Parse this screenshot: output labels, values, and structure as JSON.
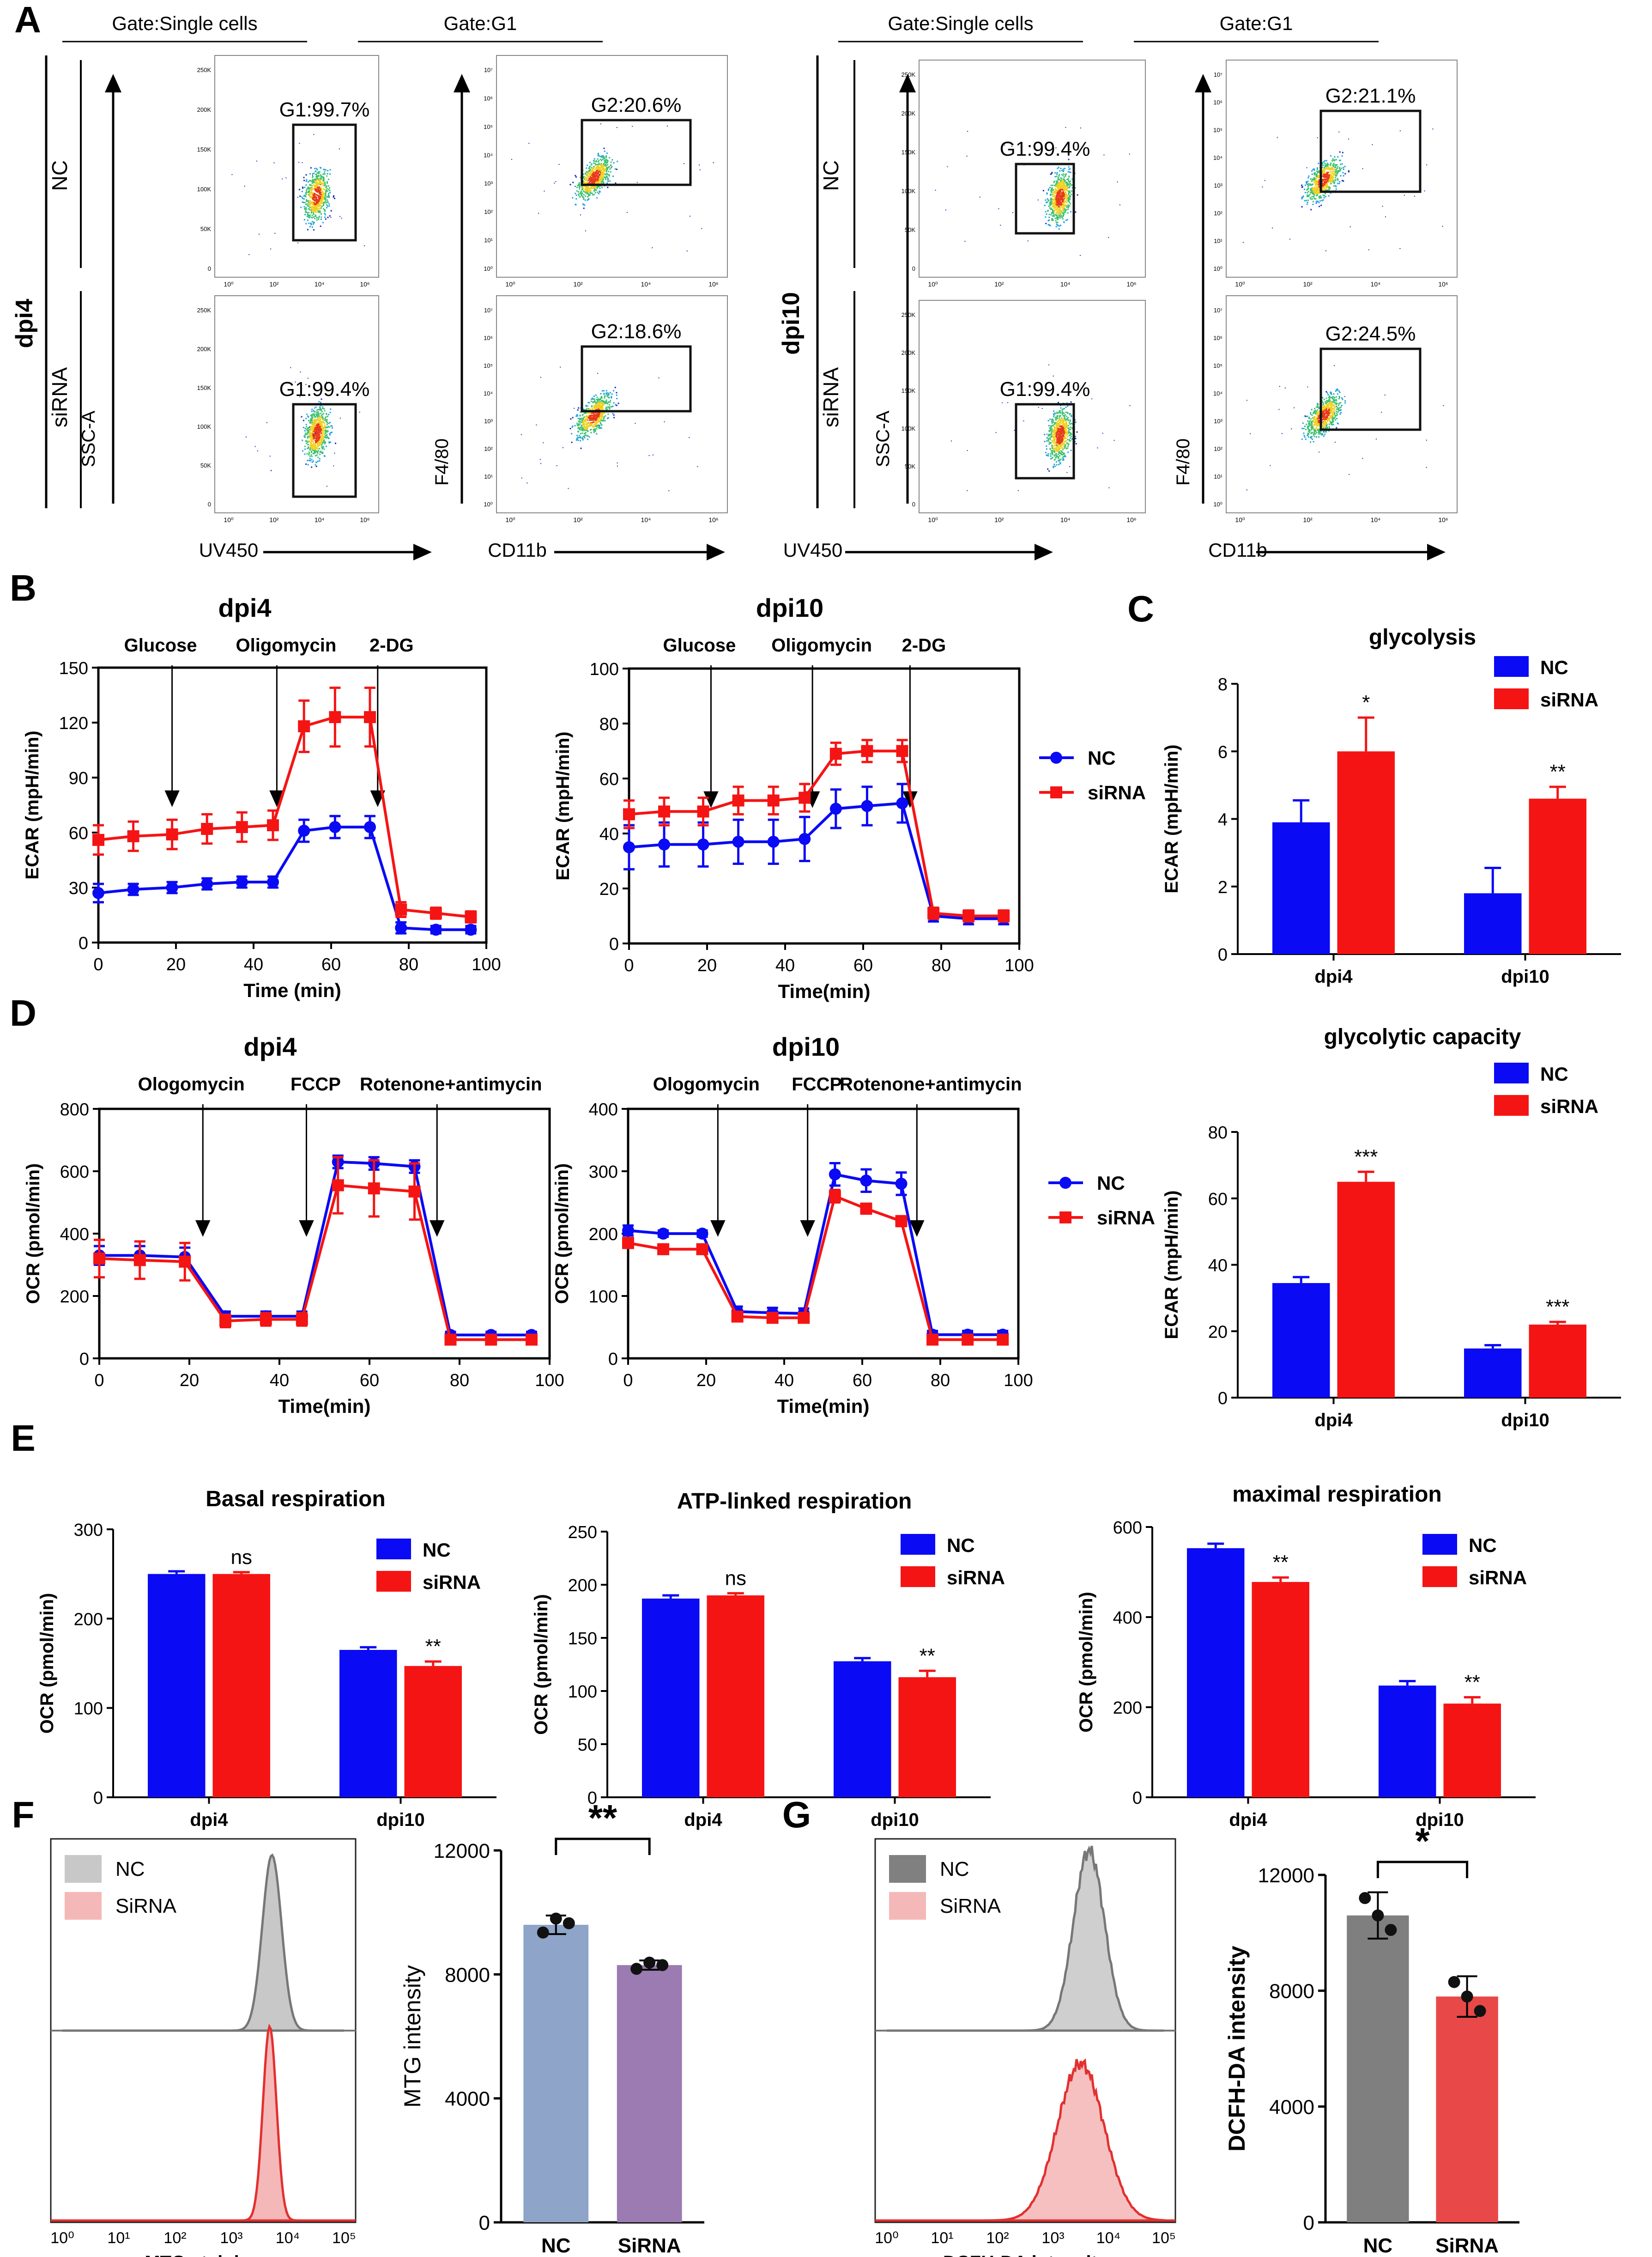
{
  "colors": {
    "nc": "#0a0af5",
    "sirna": "#f51414",
    "gray": "#808080",
    "pink": "#f4a6a6",
    "blueGray": "#8ea4c8",
    "purple": "#9b7bb2",
    "dkgray": "#7f7f7f",
    "salmon": "#e84848"
  },
  "panels": {
    "A": "A",
    "B": "B",
    "C": "C",
    "D": "D",
    "E": "E",
    "F": "F",
    "G": "G"
  },
  "panelA": {
    "gate_single": "Gate:Single cells",
    "gate_g1": "Gate:G1",
    "groups": [
      "dpi4",
      "dpi10"
    ],
    "rows": [
      "NC",
      "siRNA"
    ],
    "ssc_axis": "SSC-A",
    "uv_axis": "UV450",
    "f480_axis": "F4/80",
    "cd11b_axis": "CD11b",
    "gates": [
      "G1:99.7%",
      "G1:99.4%",
      "G2:20.6%",
      "G2:18.6%",
      "G1:99.4%",
      "G1:99.4%",
      "G2:21.1%",
      "G2:24.5%"
    ]
  },
  "legend": {
    "nc": "NC",
    "sirna": "siRNA"
  },
  "chart_data": [
    {
      "id": "B-dpi4",
      "type": "line",
      "title": "dpi4",
      "xlabel": "Time (min)",
      "ylabel": "ECAR (mpH/min)",
      "xlim": [
        0,
        100
      ],
      "ylim": [
        0,
        150
      ],
      "yticks": [
        "0",
        "30",
        "60",
        "90",
        "120",
        "150"
      ],
      "xticks": [
        "0",
        "20",
        "40",
        "60",
        "80",
        "100"
      ],
      "annotations": [
        {
          "label": "Glucose",
          "x": 19
        },
        {
          "label": "Oligomycin",
          "x": 46
        },
        {
          "label": "2-DG",
          "x": 72
        }
      ],
      "x": [
        0,
        9,
        19,
        28,
        37,
        45,
        53,
        61,
        70,
        78,
        87,
        96
      ],
      "series": [
        {
          "name": "NC",
          "values": [
            27,
            29,
            30,
            32,
            33,
            33,
            61,
            63,
            63,
            8,
            7,
            7
          ],
          "err": [
            5,
            3,
            3,
            3,
            3,
            3,
            6,
            6,
            6,
            3,
            2,
            2
          ]
        },
        {
          "name": "siRNA",
          "values": [
            56,
            58,
            59,
            62,
            63,
            64,
            118,
            123,
            123,
            18,
            16,
            14
          ],
          "err": [
            8,
            8,
            8,
            8,
            8,
            8,
            14,
            16,
            16,
            4,
            3,
            3
          ]
        }
      ]
    },
    {
      "id": "B-dpi10",
      "type": "line",
      "title": "dpi10",
      "xlabel": "Time(min)",
      "ylabel": "ECAR (mpH/min)",
      "xlim": [
        0,
        100
      ],
      "ylim": [
        0,
        100
      ],
      "yticks": [
        "0",
        "20",
        "40",
        "60",
        "80",
        "100"
      ],
      "xticks": [
        "0",
        "20",
        "40",
        "60",
        "80",
        "100"
      ],
      "annotations": [
        {
          "label": "Glucose",
          "x": 21
        },
        {
          "label": "Oligomycin",
          "x": 47
        },
        {
          "label": "2-DG",
          "x": 72
        }
      ],
      "x": [
        0,
        9,
        19,
        28,
        37,
        45,
        53,
        61,
        70,
        78,
        87,
        96
      ],
      "series": [
        {
          "name": "NC",
          "values": [
            35,
            36,
            36,
            37,
            37,
            38,
            49,
            50,
            51,
            10,
            9,
            9
          ],
          "err": [
            8,
            8,
            8,
            8,
            8,
            8,
            7,
            7,
            7,
            2,
            2,
            2
          ]
        },
        {
          "name": "siRNA",
          "values": [
            47,
            48,
            48,
            52,
            52,
            53,
            69,
            70,
            70,
            11,
            10,
            10
          ],
          "err": [
            5,
            5,
            5,
            5,
            5,
            5,
            4,
            4,
            4,
            2,
            2,
            2
          ]
        }
      ]
    },
    {
      "id": "D-dpi4",
      "type": "line",
      "title": "dpi4",
      "xlabel": "Time(min)",
      "ylabel": "OCR (pmol/min)",
      "xlim": [
        0,
        100
      ],
      "ylim": [
        0,
        800
      ],
      "yticks": [
        "0",
        "200",
        "400",
        "600",
        "800"
      ],
      "xticks": [
        "0",
        "20",
        "40",
        "60",
        "80",
        "100"
      ],
      "annotations": [
        {
          "label": "Ologomycin",
          "x": 23
        },
        {
          "label": "FCCP",
          "x": 46
        },
        {
          "label": "Rotenone+antimycin",
          "x": 75
        }
      ],
      "x": [
        0,
        9,
        19,
        28,
        37,
        45,
        53,
        61,
        70,
        78,
        87,
        96
      ],
      "series": [
        {
          "name": "NC",
          "values": [
            330,
            330,
            325,
            135,
            135,
            135,
            630,
            625,
            615,
            75,
            75,
            75
          ],
          "err": [
            30,
            30,
            30,
            15,
            15,
            15,
            20,
            20,
            20,
            10,
            10,
            10
          ]
        },
        {
          "name": "siRNA",
          "values": [
            320,
            315,
            310,
            120,
            125,
            125,
            555,
            545,
            535,
            60,
            60,
            60
          ],
          "err": [
            60,
            60,
            60,
            20,
            20,
            20,
            90,
            90,
            90,
            12,
            12,
            12
          ]
        }
      ]
    },
    {
      "id": "D-dpi10",
      "type": "line",
      "title": "dpi10",
      "xlabel": "Time(min)",
      "ylabel": "OCR (pmol/min)",
      "xlim": [
        0,
        100
      ],
      "ylim": [
        0,
        400
      ],
      "yticks": [
        "0",
        "100",
        "200",
        "300",
        "400"
      ],
      "xticks": [
        "0",
        "20",
        "40",
        "60",
        "80",
        "100"
      ],
      "annotations": [
        {
          "label": "Ologomycin",
          "x": 23
        },
        {
          "label": "FCCP",
          "x": 46
        },
        {
          "label": "Rotenone+antimycin",
          "x": 74
        }
      ],
      "x": [
        0,
        9,
        19,
        28,
        37,
        45,
        53,
        61,
        70,
        78,
        87,
        96
      ],
      "series": [
        {
          "name": "NC",
          "values": [
            205,
            200,
            200,
            75,
            73,
            72,
            295,
            285,
            280,
            38,
            38,
            38
          ],
          "err": [
            8,
            5,
            5,
            8,
            8,
            8,
            18,
            18,
            18,
            6,
            6,
            6
          ]
        },
        {
          "name": "siRNA",
          "values": [
            185,
            175,
            175,
            67,
            65,
            65,
            260,
            240,
            220,
            30,
            30,
            30
          ],
          "err": [
            8,
            5,
            5,
            5,
            5,
            5,
            10,
            8,
            8,
            4,
            4,
            4
          ]
        }
      ]
    },
    {
      "id": "C-glycolysis",
      "type": "bar",
      "title": "glycolysis",
      "ylabel": "ECAR (mpH/min)",
      "ylim": [
        0,
        8
      ],
      "yticks": [
        "0",
        "2",
        "4",
        "6",
        "8"
      ],
      "categories": [
        "dpi4",
        "dpi10"
      ],
      "series": [
        {
          "name": "NC",
          "values": [
            3.9,
            1.8
          ],
          "err": [
            0.65,
            0.75
          ]
        },
        {
          "name": "siRNA",
          "values": [
            6.0,
            4.6
          ],
          "err": [
            1.0,
            0.35
          ]
        }
      ],
      "sig": [
        "*",
        "**"
      ]
    },
    {
      "id": "C-glycolytic-capacity",
      "type": "bar",
      "title": "glycolytic capacity",
      "ylabel": "ECAR (mpH/min)",
      "ylim": [
        0,
        80
      ],
      "yticks": [
        "0",
        "20",
        "40",
        "60",
        "80"
      ],
      "categories": [
        "dpi4",
        "dpi10"
      ],
      "series": [
        {
          "name": "NC",
          "values": [
            34.5,
            14.8
          ],
          "err": [
            1.8,
            1.0
          ]
        },
        {
          "name": "siRNA",
          "values": [
            65,
            22
          ],
          "err": [
            3.0,
            0.8
          ]
        }
      ],
      "sig": [
        "***",
        "***"
      ]
    },
    {
      "id": "E-basal",
      "type": "bar",
      "title": "Basal respiration",
      "ylabel": "OCR (pmol/min)",
      "ylim": [
        0,
        300
      ],
      "yticks": [
        "0",
        "100",
        "200",
        "300"
      ],
      "categories": [
        "dpi4",
        "dpi10"
      ],
      "series": [
        {
          "name": "NC",
          "values": [
            250,
            165
          ],
          "err": [
            3,
            3
          ]
        },
        {
          "name": "siRNA",
          "values": [
            250,
            147
          ],
          "err": [
            2,
            5
          ]
        }
      ],
      "sig": [
        "ns",
        "**"
      ]
    },
    {
      "id": "E-atp",
      "type": "bar",
      "title": "ATP-linked respiration",
      "ylabel": "OCR (pmol/min)",
      "ylim": [
        0,
        250
      ],
      "yticks": [
        "0",
        "50",
        "100",
        "150",
        "200",
        "250"
      ],
      "categories": [
        "dpi4",
        "dpi10"
      ],
      "series": [
        {
          "name": "NC",
          "values": [
            187,
            128
          ],
          "err": [
            3,
            3
          ]
        },
        {
          "name": "siRNA",
          "values": [
            190,
            113
          ],
          "err": [
            2,
            6
          ]
        }
      ],
      "sig": [
        "ns",
        "**"
      ]
    },
    {
      "id": "E-maximal",
      "type": "bar",
      "title": "maximal respiration",
      "ylabel": "OCR (pmol/min)",
      "ylim": [
        0,
        600
      ],
      "yticks": [
        "0",
        "200",
        "400",
        "600"
      ],
      "categories": [
        "dpi4",
        "dpi10"
      ],
      "series": [
        {
          "name": "NC",
          "values": [
            553,
            248
          ],
          "err": [
            10,
            10
          ]
        },
        {
          "name": "siRNA",
          "values": [
            478,
            208
          ],
          "err": [
            10,
            14
          ]
        }
      ],
      "sig": [
        "**",
        "**"
      ]
    },
    {
      "id": "F-bar",
      "type": "bar",
      "ylabel": "MTG intensity",
      "ylim": [
        0,
        12000
      ],
      "yticks": [
        "0",
        "4000",
        "8000",
        "12000"
      ],
      "categories": [
        "NC",
        "SiRNA"
      ],
      "values": [
        9600,
        8300
      ],
      "err": [
        300,
        150
      ],
      "points": [
        [
          9350,
          9800,
          9650
        ],
        [
          8180,
          8380,
          8300
        ]
      ],
      "sig": "**"
    },
    {
      "id": "G-bar",
      "type": "bar",
      "ylabel": "DCFH-DA intensity",
      "ylim": [
        0,
        12000
      ],
      "yticks": [
        "0",
        "4000",
        "8000",
        "12000"
      ],
      "categories": [
        "NC",
        "SiRNA"
      ],
      "values": [
        10600,
        7800
      ],
      "err": [
        800,
        700
      ],
      "points": [
        [
          11200,
          10600,
          10100
        ],
        [
          8300,
          7800,
          7300
        ]
      ],
      "sig": "*"
    },
    {
      "id": "F-hist",
      "type": "area",
      "xlabel": "MTG staining",
      "xticks": [
        "10⁰",
        "10¹",
        "10²",
        "10³",
        "10⁴",
        "10⁵"
      ],
      "legend": [
        "NC",
        "SiRNA"
      ],
      "peak_log10": [
        3.72,
        3.68
      ]
    },
    {
      "id": "G-hist",
      "type": "area",
      "xlabel": "DCFH-DA intensity",
      "xticks": [
        "10⁰",
        "10¹",
        "10²",
        "10³",
        "10⁴",
        "10⁵"
      ],
      "legend": [
        "NC",
        "SiRNA"
      ],
      "peak_log10": [
        3.65,
        3.5
      ]
    }
  ],
  "ticks_flow_y": [
    "250K",
    "200K",
    "150K",
    "100K",
    "50K",
    "0"
  ],
  "ticks_flow_log": [
    "10⁰",
    "10²",
    "10⁴",
    "10⁶"
  ],
  "ticks_flow_ylog": [
    "10⁷",
    "10⁶",
    "10⁵",
    "10⁴",
    "10³",
    "10²",
    "10¹",
    "10⁰"
  ]
}
